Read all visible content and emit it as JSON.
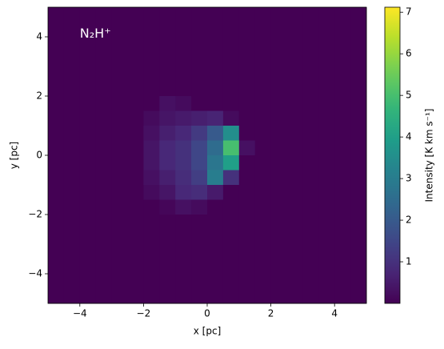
{
  "chart_data": {
    "type": "heatmap",
    "title": "N₂H⁺",
    "x_label": "x [pc]",
    "y_label": "y [pc]",
    "colorbar_label": "Intensity [K km s⁻¹]",
    "colormap": "viridis",
    "xlim": [
      -5,
      5
    ],
    "ylim": [
      -5,
      5
    ],
    "xticks": [
      {
        "value": -4,
        "label": "−4"
      },
      {
        "value": -2,
        "label": "−2"
      },
      0,
      2,
      4
    ],
    "yticks": [
      {
        "value": -4,
        "label": "−4"
      },
      {
        "value": -2,
        "label": "−2"
      },
      0,
      2,
      4
    ],
    "clim": [
      0,
      7.12
    ],
    "cticks": [
      1,
      2,
      3,
      4,
      5,
      6,
      7
    ],
    "x": [
      -4.75,
      -4.25,
      -3.75,
      -3.25,
      -2.75,
      -2.25,
      -1.75,
      -1.25,
      -0.75,
      -0.25,
      0.25,
      0.75,
      1.25,
      1.75,
      2.25,
      2.75,
      3.25,
      3.75,
      4.25,
      4.75
    ],
    "y": [
      4.75,
      4.25,
      3.75,
      3.25,
      2.75,
      2.25,
      1.75,
      1.25,
      0.75,
      0.25,
      -0.25,
      -0.75,
      -1.25,
      -1.75,
      -2.25,
      -2.75,
      -3.25,
      -3.75,
      -4.25,
      -4.75
    ],
    "z": [
      [
        0,
        0,
        0,
        0,
        0,
        0,
        0,
        0,
        0,
        0,
        0,
        0,
        0,
        0,
        0,
        0,
        0,
        0,
        0,
        0
      ],
      [
        0,
        0,
        0,
        0,
        0,
        0,
        0,
        0,
        0,
        0,
        0,
        0,
        0,
        0,
        0,
        0,
        0,
        0,
        0,
        0
      ],
      [
        0,
        0,
        0,
        0,
        0,
        0,
        0,
        0,
        0,
        0,
        0,
        0,
        0,
        0,
        0,
        0,
        0,
        0,
        0,
        0
      ],
      [
        0,
        0,
        0,
        0,
        0,
        0,
        0,
        0,
        0,
        0,
        0,
        0,
        0,
        0,
        0,
        0,
        0,
        0,
        0,
        0
      ],
      [
        0,
        0,
        0,
        0,
        0,
        0,
        0,
        0,
        0,
        0,
        0,
        0,
        0,
        0,
        0,
        0,
        0,
        0,
        0,
        0
      ],
      [
        0,
        0,
        0,
        0,
        0,
        0,
        0,
        0,
        0,
        0,
        0,
        0,
        0,
        0,
        0,
        0,
        0,
        0,
        0,
        0
      ],
      [
        0,
        0,
        0,
        0,
        0,
        0,
        0,
        0.3,
        0.2,
        0,
        0,
        0,
        0,
        0,
        0,
        0,
        0,
        0,
        0,
        0
      ],
      [
        0,
        0,
        0,
        0,
        0,
        0,
        0.2,
        0.4,
        0.5,
        0.6,
        0.7,
        0.2,
        0,
        0,
        0,
        0,
        0,
        0,
        0,
        0
      ],
      [
        0,
        0,
        0,
        0,
        0,
        0,
        0.3,
        0.6,
        0.8,
        1.2,
        2.0,
        3.5,
        0,
        0,
        0,
        0,
        0,
        0,
        0,
        0
      ],
      [
        0,
        0,
        0,
        0,
        0,
        0,
        0.4,
        0.8,
        1.0,
        1.5,
        2.5,
        5.0,
        0.3,
        0,
        0,
        0,
        0,
        0,
        0,
        0
      ],
      [
        0,
        0,
        0,
        0,
        0,
        0,
        0.4,
        0.8,
        1.0,
        1.5,
        2.8,
        4.0,
        0,
        0,
        0,
        0,
        0,
        0,
        0,
        0
      ],
      [
        0,
        0,
        0,
        0,
        0,
        0,
        0.3,
        0.6,
        0.9,
        1.3,
        3.0,
        1.0,
        0,
        0,
        0,
        0,
        0,
        0,
        0,
        0
      ],
      [
        0,
        0,
        0,
        0,
        0,
        0,
        0.2,
        0.4,
        0.8,
        0.9,
        0.5,
        0,
        0,
        0,
        0,
        0,
        0,
        0,
        0,
        0
      ],
      [
        0,
        0,
        0,
        0,
        0,
        0,
        0,
        0.1,
        0.3,
        0.2,
        0,
        0,
        0,
        0,
        0,
        0,
        0,
        0,
        0,
        0
      ],
      [
        0,
        0,
        0,
        0,
        0,
        0,
        0,
        0,
        0,
        0,
        0,
        0,
        0,
        0,
        0,
        0,
        0,
        0,
        0,
        0
      ],
      [
        0,
        0,
        0,
        0,
        0,
        0,
        0,
        0,
        0,
        0,
        0,
        0,
        0,
        0,
        0,
        0,
        0,
        0,
        0,
        0
      ],
      [
        0,
        0,
        0,
        0,
        0,
        0,
        0,
        0,
        0,
        0,
        0,
        0,
        0,
        0,
        0,
        0,
        0,
        0,
        0,
        0
      ],
      [
        0,
        0,
        0,
        0,
        0,
        0,
        0,
        0,
        0,
        0,
        0,
        0,
        0,
        0,
        0,
        0,
        0,
        0,
        0,
        0
      ],
      [
        0,
        0,
        0,
        0,
        0,
        0,
        0,
        0,
        0,
        0,
        0,
        0,
        0,
        0,
        0,
        0,
        0,
        0,
        0,
        0
      ],
      [
        0,
        0,
        0,
        0,
        0,
        0,
        0,
        0,
        0,
        0,
        0,
        0,
        0,
        0,
        0,
        0,
        0,
        0,
        0,
        0
      ]
    ]
  }
}
